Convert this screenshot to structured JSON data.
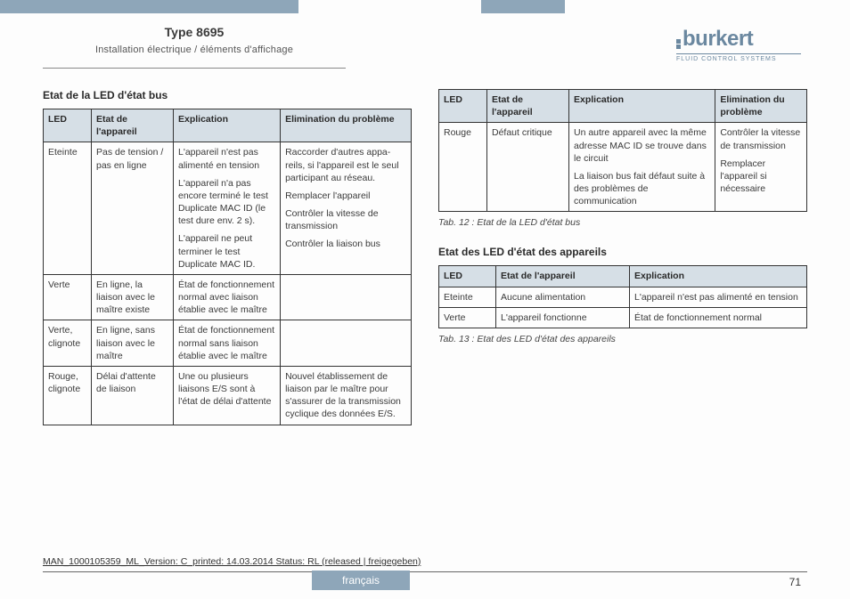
{
  "header": {
    "doc_type": "Type 8695",
    "subtitle": "Installation électrique / éléments d'affichage",
    "logo_word": "burkert",
    "logo_sub": "FLUID CONTROL SYSTEMS"
  },
  "left": {
    "title": "Etat de la LED d'état bus",
    "table": {
      "headers": [
        "LED",
        "Etat de l'appareil",
        "Explication",
        "Elimination du problème"
      ],
      "rows": [
        {
          "led": "Eteinte",
          "etat": "Pas de tension / pas en ligne",
          "expl": [
            "L'appareil n'est pas alimenté en tension",
            "L'appareil n'a pas encore terminé le test Duplicate MAC ID (le test dure env. 2 s).",
            "L'appareil ne peut terminer le test Duplicate MAC ID."
          ],
          "elim": [
            "Raccorder d'autres appa­reils, si l'appareil est le seul participant au réseau.",
            "Remplacer l'appareil",
            "Contrôler la vitesse de transmission",
            "Contrôler la liaison bus"
          ]
        },
        {
          "led": "Verte",
          "etat": "En ligne, la liaison avec le maître existe",
          "expl": [
            "État de fonction­nement normal avec liaison établie avec le maître"
          ],
          "elim": []
        },
        {
          "led": "Verte, clignote",
          "etat": "En ligne, sans liaison avec le maître",
          "expl": [
            "État de fonction­nement normal sans liaison établie avec le maître"
          ],
          "elim": []
        },
        {
          "led": "Rouge, clignote",
          "etat": "Délai d'attente de liaison",
          "expl": [
            "Une ou plusieurs liaisons E/S sont à l'état de délai d'attente"
          ],
          "elim": [
            "Nouvel établissement de liaison par le maître pour s'assurer de la transmission cyclique des données E/S."
          ]
        }
      ]
    }
  },
  "right": {
    "table1": {
      "headers": [
        "LED",
        "Etat de l'appareil",
        "Explication",
        "Elimination du problème"
      ],
      "rows": [
        {
          "led": "Rouge",
          "etat": "Défaut critique",
          "expl": [
            "Un autre appareil avec la même adresse MAC ID se trouve dans le circuit",
            "La liaison bus fait défaut suite à des problèmes de communication"
          ],
          "elim": [
            "Contrôler la vitesse de transmission",
            "Remplacer l'appareil si nécessaire"
          ]
        }
      ]
    },
    "caption1": "Tab. 12 :  Etat de la LED d'état bus",
    "title2": "Etat des LED d'état des appareils",
    "table2": {
      "headers": [
        "LED",
        "Etat de l'appareil",
        "Explication"
      ],
      "rows": [
        {
          "led": "Eteinte",
          "etat": "Aucune alimentation",
          "expl": "L'appareil n'est pas alimenté en tension"
        },
        {
          "led": "Verte",
          "etat": "L'appareil fonctionne",
          "expl": "État de fonctionnement normal"
        }
      ]
    },
    "caption2": "Tab. 13 :  Etat des LED d'état des appareils"
  },
  "footer": {
    "line": "MAN_1000105359_ML_Version: C_printed: 14.03.2014 Status: RL (released | freigegeben)",
    "lang": "français",
    "page": "71"
  },
  "colors": {
    "bar": "#8ea6b9",
    "header_bg": "#d6dfe6",
    "logo": "#6b88a0"
  }
}
